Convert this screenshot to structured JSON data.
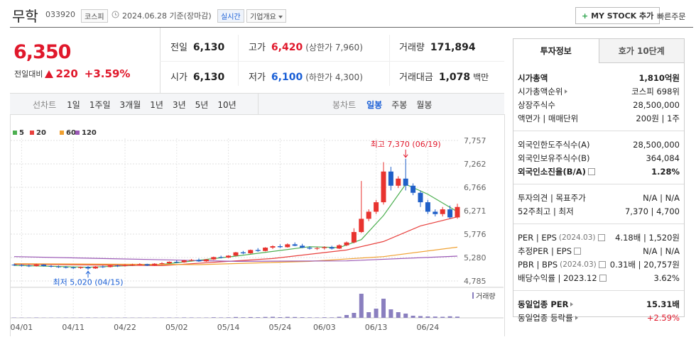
{
  "header": {
    "name": "무학",
    "code": "033920",
    "market": "코스피",
    "date": "2024.06.28 기준(장마감)",
    "realtime": "실시간",
    "company": "기업개요",
    "mystock": "MY STOCK 추가",
    "quick_order": "빠른주문"
  },
  "price": {
    "now": "6,350",
    "change_label": "전일대비",
    "change": "220",
    "rate": "+3.59%"
  },
  "quote": {
    "rows": [
      [
        {
          "label": "전일",
          "value": "6,130"
        },
        {
          "label": "고가",
          "value": "6,420",
          "note": "(상한가 7,960)",
          "color": "#e0182b"
        },
        {
          "label": "거래량",
          "value": "171,894"
        }
      ],
      [
        {
          "label": "시가",
          "value": "6,130"
        },
        {
          "label": "저가",
          "value": "6,100",
          "note": "(하한가 4,300)",
          "color": "#1a5fd6"
        },
        {
          "label": "거래대금",
          "value": "1,078",
          "unit": "백만"
        }
      ]
    ]
  },
  "periods": {
    "line_label": "선차트",
    "line": [
      "1일",
      "1주일",
      "3개월",
      "1년",
      "3년",
      "5년",
      "10년"
    ],
    "candle_label": "봉차트",
    "candle": [
      "일봉",
      "주봉",
      "월봉"
    ],
    "selected": "일봉"
  },
  "chart_data": {
    "type": "candlestick",
    "categories": [
      null,
      "04/01",
      null,
      null,
      null,
      null,
      null,
      null,
      "04/11",
      null,
      null,
      null,
      null,
      null,
      null,
      "04/22",
      null,
      null,
      null,
      null,
      null,
      null,
      "05/02",
      null,
      null,
      null,
      null,
      null,
      null,
      "05/14",
      null,
      null,
      null,
      null,
      null,
      null,
      "05/24",
      null,
      null,
      null,
      null,
      null,
      "06/03",
      null,
      null,
      null,
      null,
      null,
      null,
      "06/13",
      null,
      null,
      null,
      null,
      null,
      null,
      "06/24",
      null,
      null,
      null,
      null
    ],
    "open": [
      5130,
      5120,
      5110,
      5100,
      5130,
      5100,
      5090,
      5080,
      5070,
      5060,
      5080,
      5050,
      5090,
      5080,
      5110,
      5100,
      5120,
      5130,
      5140,
      5110,
      5150,
      5160,
      5190,
      5180,
      5220,
      5230,
      5200,
      5240,
      5290,
      5280,
      5320,
      5390,
      5370,
      5440,
      5420,
      5490,
      5520,
      5500,
      5560,
      5530,
      5490,
      5470,
      5480,
      5500,
      5470,
      5540,
      5600,
      5820,
      6100,
      6250,
      6450,
      7100,
      6800,
      6950,
      6800,
      6650,
      6450,
      6250,
      6200,
      6300,
      6130
    ],
    "high": [
      5150,
      5140,
      5130,
      5150,
      5140,
      5120,
      5110,
      5100,
      5090,
      5090,
      5100,
      5100,
      5110,
      5120,
      5130,
      5140,
      5150,
      5160,
      5150,
      5160,
      5180,
      5200,
      5220,
      5230,
      5250,
      5260,
      5250,
      5300,
      5320,
      5330,
      5400,
      5420,
      5450,
      5480,
      5500,
      5540,
      5560,
      5580,
      5600,
      5570,
      5520,
      5500,
      5520,
      5530,
      5560,
      5620,
      5900,
      6900,
      6300,
      6500,
      7300,
      7200,
      7000,
      7370,
      6850,
      6700,
      6500,
      6300,
      6350,
      6380,
      6420
    ],
    "low": [
      5100,
      5090,
      5080,
      5090,
      5090,
      5070,
      5060,
      5050,
      5040,
      5040,
      5020,
      5040,
      5060,
      5070,
      5080,
      5090,
      5100,
      5110,
      5100,
      5100,
      5130,
      5150,
      5160,
      5170,
      5200,
      5190,
      5190,
      5230,
      5260,
      5270,
      5310,
      5350,
      5360,
      5400,
      5410,
      5460,
      5480,
      5490,
      5520,
      5480,
      5450,
      5440,
      5450,
      5450,
      5460,
      5520,
      5580,
      5800,
      6050,
      6200,
      6400,
      6700,
      6750,
      6700,
      6600,
      6350,
      6200,
      6150,
      6150,
      6100,
      6100
    ],
    "close": [
      5120,
      5110,
      5100,
      5130,
      5100,
      5090,
      5080,
      5070,
      5060,
      5080,
      5050,
      5090,
      5080,
      5110,
      5100,
      5120,
      5130,
      5140,
      5110,
      5150,
      5160,
      5190,
      5180,
      5220,
      5230,
      5200,
      5240,
      5290,
      5280,
      5320,
      5390,
      5370,
      5440,
      5420,
      5490,
      5520,
      5500,
      5560,
      5530,
      5490,
      5470,
      5480,
      5500,
      5470,
      5540,
      5600,
      5820,
      6100,
      6250,
      6450,
      7100,
      6800,
      6950,
      6800,
      6650,
      6450,
      6250,
      6200,
      6300,
      6130,
      6350
    ],
    "rise_color": "#e8332f",
    "fall_color": "#1f5fc8",
    "ylim": [
      4785,
      7757
    ],
    "yticks": [
      {
        "value": 7757,
        "label": "7,757"
      },
      {
        "value": 7262,
        "label": "7,262"
      },
      {
        "value": 6766,
        "label": "6,766"
      },
      {
        "value": 6271,
        "label": "6,271"
      },
      {
        "value": 5776,
        "label": "5,776"
      },
      {
        "value": 5280,
        "label": "5,280"
      },
      {
        "value": 4785,
        "label": "4,785"
      }
    ],
    "grid": true,
    "moving_averages": [
      {
        "name": "5",
        "color": "#4caf50",
        "x": [
          0,
          10,
          20,
          30,
          40,
          44,
          47,
          50,
          53,
          56,
          60
        ],
        "values": [
          5115,
          5075,
          5135,
          5310,
          5510,
          5490,
          5660,
          6170,
          6830,
          6620,
          6250
        ]
      },
      {
        "name": "20",
        "color": "#e8413e",
        "x": [
          0,
          20,
          35,
          45,
          50,
          55,
          60
        ],
        "values": [
          5140,
          5110,
          5260,
          5440,
          5620,
          5950,
          6140
        ]
      },
      {
        "name": "60",
        "color": "#f0a030",
        "x": [
          0,
          25,
          40,
          50,
          60
        ],
        "values": [
          5150,
          5130,
          5200,
          5300,
          5500
        ]
      },
      {
        "name": "120",
        "color": "#9b59b6",
        "x": [
          0,
          30,
          45,
          60
        ],
        "values": [
          5300,
          5200,
          5210,
          5310
        ]
      }
    ],
    "volume": {
      "name": "거래량",
      "color": "#8a7fbf",
      "ylim": [
        0,
        3500000
      ],
      "values": [
        40000,
        35000,
        30000,
        50000,
        30000,
        32000,
        28000,
        30000,
        25000,
        40000,
        45000,
        38000,
        30000,
        35000,
        30000,
        40000,
        33000,
        36000,
        30000,
        42000,
        45000,
        50000,
        40000,
        60000,
        55000,
        40000,
        48000,
        80000,
        60000,
        70000,
        120000,
        80000,
        110000,
        90000,
        130000,
        150000,
        100000,
        140000,
        120000,
        90000,
        70000,
        60000,
        80000,
        70000,
        150000,
        400000,
        700000,
        3400000,
        800000,
        1300000,
        2700000,
        1200000,
        800000,
        600000,
        300000,
        250000,
        200000,
        180000,
        150000,
        220000,
        171894
      ]
    },
    "annotations": [
      {
        "text": "최고 7,370 (06/19)",
        "x": 53,
        "y": 7370,
        "position": "above",
        "color": "#e0182b"
      },
      {
        "text": "최저 5,020 (04/15)",
        "x": 10,
        "y": 5020,
        "position": "below",
        "color": "#1a5fd6"
      }
    ]
  },
  "info": {
    "tabs": [
      "투자정보",
      "호가 10단계"
    ],
    "groups": [
      [
        {
          "label": "시가총액",
          "value": "1,810억원",
          "bold": true
        },
        {
          "label": "시가총액순위",
          "value": "코스피 698위",
          "arrow": true
        },
        {
          "label": "상장주식수",
          "value": "28,500,000"
        },
        {
          "label": "액면가 | 매매단위",
          "value": "200원 | 1주"
        }
      ],
      [
        {
          "label": "외국인한도주식수(A)",
          "value": "28,500,000"
        },
        {
          "label": "외국인보유주식수(B)",
          "value": "364,084"
        },
        {
          "label": "외국인소진율(B/A)",
          "value": "1.28%",
          "bold": true,
          "help": true
        }
      ],
      [
        {
          "label": "투자의견 | 목표주가",
          "value": "N/A | N/A"
        },
        {
          "label": "52주최고 | 최저",
          "value": "7,370 | 4,700"
        }
      ],
      [
        {
          "label": "PER | EPS",
          "sub": "(2024.03)",
          "value": "4.18배 | 1,520원",
          "help": true
        },
        {
          "label": "추정PER | EPS",
          "value": "N/A | N/A",
          "help": true
        },
        {
          "label": "PBR | BPS",
          "sub": "(2024.03)",
          "value": "0.31배 | 20,757원",
          "help": true
        },
        {
          "label": "배당수익률 | 2023.12",
          "value": "3.62%",
          "help": true
        }
      ],
      [
        {
          "label": "동일업종 PER",
          "value": "15.31배",
          "bold": true,
          "arrow": true
        },
        {
          "label": "동일업종 등락률",
          "value": "+2.59%",
          "arrow": true,
          "color": "#e0182b"
        }
      ]
    ]
  }
}
